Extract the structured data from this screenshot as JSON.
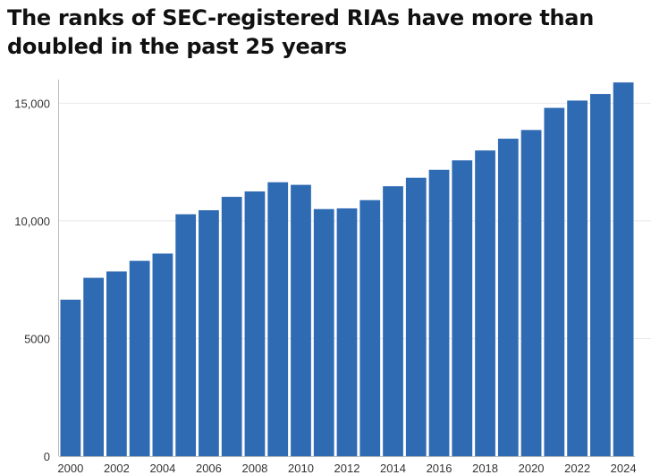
{
  "title": "The ranks of SEC-registered RIAs have more than doubled in the past 25 years",
  "colors": {
    "bar": "#2f6bb3",
    "grid": "#e8e8e8",
    "text": "#333333"
  },
  "chart_data": {
    "type": "bar",
    "title": "The ranks of SEC-registered RIAs have more than doubled in the past 25 years",
    "xlabel": "",
    "ylabel": "",
    "categories": [
      "2000",
      "2001",
      "2002",
      "2003",
      "2004",
      "2005",
      "2006",
      "2007",
      "2008",
      "2009",
      "2010",
      "2011",
      "2012",
      "2013",
      "2014",
      "2015",
      "2016",
      "2017",
      "2018",
      "2019",
      "2020",
      "2021",
      "2022",
      "2023",
      "2024"
    ],
    "values": [
      6650,
      7580,
      7850,
      8300,
      8610,
      10280,
      10450,
      11020,
      11250,
      11640,
      11530,
      10500,
      10530,
      10880,
      11470,
      11830,
      12170,
      12570,
      12990,
      13490,
      13860,
      14800,
      15110,
      15390,
      15880
    ],
    "ylim": [
      0,
      16000
    ],
    "yticks": [
      0,
      5000,
      10000,
      15000
    ],
    "ytick_labels": [
      "0",
      "5000",
      "10,000",
      "15,000"
    ],
    "xtick_labels": [
      "2000",
      "2002",
      "2004",
      "2006",
      "2008",
      "2010",
      "2012",
      "2014",
      "2016",
      "2018",
      "2020",
      "2022",
      "2024"
    ],
    "grid": true,
    "legend": "none"
  }
}
